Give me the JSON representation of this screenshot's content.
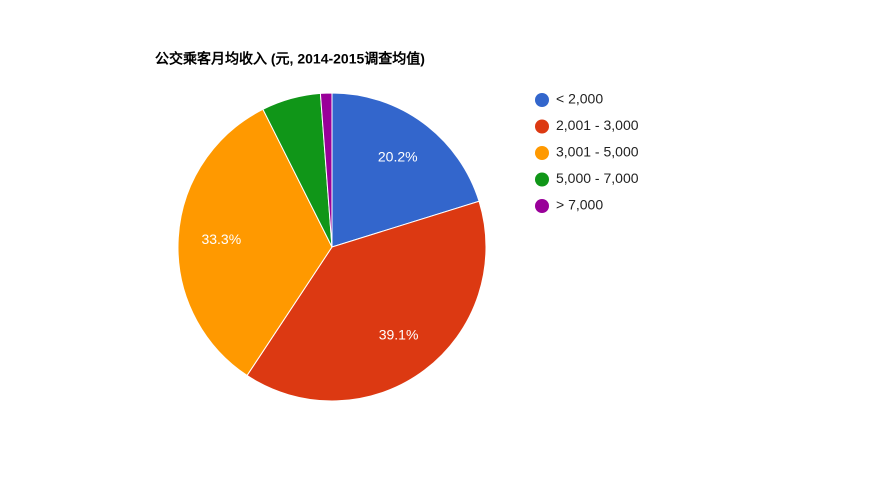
{
  "chart_data": {
    "type": "pie",
    "title": "公交乘客月均收入 (元, 2014-2015调查均值)",
    "categories": [
      "< 2,000",
      "2,001 - 3,000",
      "3,001 - 5,000",
      "5,000 - 7,000",
      "> 7,000"
    ],
    "values": [
      20.2,
      39.1,
      33.3,
      6.2,
      1.2
    ],
    "value_labels": [
      "20.2%",
      "39.1%",
      "33.3%",
      null,
      null
    ],
    "colors": [
      "#3366cc",
      "#dc3912",
      "#ff9900",
      "#109618",
      "#990099"
    ],
    "legend": "right"
  }
}
